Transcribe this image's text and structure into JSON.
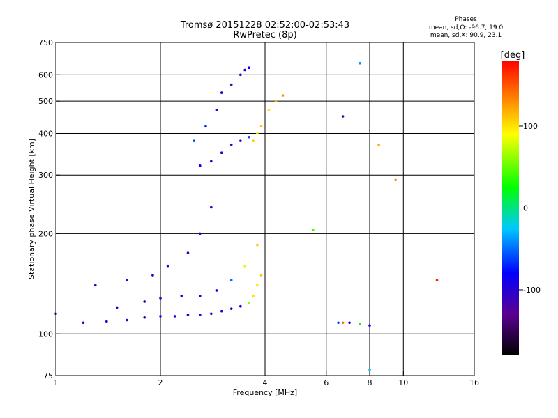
{
  "chart_data": {
    "type": "scatter",
    "title": "Tromsø 20151228 02:52:00-02:53:43",
    "subtitle": "RwPretec (8p)",
    "xlabel": "Frequency [MHz]",
    "ylabel": "Stationary phase Virtual Height [km]",
    "x_scale": "log",
    "y_scale": "log",
    "xlim": [
      1,
      16
    ],
    "ylim": [
      75,
      750
    ],
    "x_ticks": [
      1,
      2,
      4,
      6,
      8,
      10,
      16
    ],
    "x_ticklabels": [
      "1",
      "2",
      "4",
      "6",
      "8",
      "10",
      "16"
    ],
    "x_gridlines": [
      2,
      4,
      6,
      8,
      10
    ],
    "y_ticks": [
      75,
      100,
      200,
      300,
      400,
      500,
      600,
      750
    ],
    "y_ticklabels": [
      "75",
      "100",
      "200",
      "300",
      "400",
      "500",
      "600",
      "750"
    ],
    "y_gridlines": [
      100,
      200,
      300,
      400,
      500,
      600
    ],
    "grid": true,
    "colorbar": {
      "label": "[deg]",
      "range": [
        -180,
        180
      ],
      "ticks": [
        -100,
        0,
        100
      ],
      "ticklabels": [
        "-100",
        "0",
        "100"
      ],
      "colormap": [
        "#000000",
        "#5a0090",
        "#0000ff",
        "#00c8ff",
        "#00ff00",
        "#ffff00",
        "#ff0000"
      ]
    },
    "stats": {
      "heading": "Phases",
      "o_mode": "mean, sd,O: -96.7, 19.0",
      "x_mode": "mean, sd,X:  90.9, 23.1"
    },
    "series": [
      {
        "x": [
          1.0,
          1.2,
          1.4,
          1.6,
          1.8,
          2.0,
          2.2,
          2.4,
          2.6,
          2.8,
          3.0,
          3.2,
          3.4,
          3.6,
          3.7,
          3.8,
          3.9
        ],
        "y": [
          115,
          108,
          109,
          110,
          112,
          113,
          113,
          114,
          114,
          115,
          117,
          119,
          121,
          124,
          130,
          140,
          150
        ],
        "phase": [
          -100,
          -100,
          -100,
          -100,
          -100,
          -100,
          -100,
          -100,
          -100,
          -100,
          -110,
          -100,
          -90,
          60,
          100,
          100,
          110
        ]
      },
      {
        "x": [
          1.5,
          1.8,
          2.0,
          2.3,
          2.6,
          2.9,
          3.2,
          3.5,
          3.8
        ],
        "y": [
          120,
          125,
          128,
          130,
          130,
          135,
          145,
          160,
          185
        ],
        "phase": [
          -100,
          -100,
          -110,
          -100,
          -90,
          -80,
          -50,
          80,
          110
        ]
      },
      {
        "x": [
          1.3,
          1.6,
          1.9,
          2.1,
          2.4,
          2.6,
          2.8
        ],
        "y": [
          140,
          145,
          150,
          160,
          175,
          200,
          240
        ],
        "phase": [
          -100,
          -100,
          -100,
          -110,
          -100,
          -100,
          -90
        ]
      },
      {
        "x": [
          2.6,
          2.8,
          3.0,
          3.2,
          3.4,
          3.6,
          3.8
        ],
        "y": [
          320,
          330,
          350,
          370,
          380,
          390,
          400
        ],
        "phase": [
          -80,
          -90,
          -100,
          -110,
          -100,
          -60,
          100
        ]
      },
      {
        "x": [
          2.5,
          2.7,
          2.9,
          3.0,
          3.2,
          3.4,
          3.5,
          3.6
        ],
        "y": [
          380,
          420,
          470,
          530,
          560,
          600,
          620,
          630
        ],
        "phase": [
          -60,
          -70,
          -90,
          -100,
          -110,
          -110,
          -100,
          -80
        ]
      },
      {
        "x": [
          3.7,
          3.9,
          4.1,
          4.3,
          4.5
        ],
        "y": [
          380,
          420,
          470,
          500,
          520
        ],
        "phase": [
          110,
          110,
          100,
          120,
          130
        ]
      },
      {
        "x": [
          5.5,
          6.5,
          6.7,
          7.0,
          7.5,
          8.0
        ],
        "y": [
          205,
          108,
          108,
          108,
          107,
          106
        ],
        "phase": [
          40,
          -60,
          140,
          -100,
          20,
          -80
        ]
      },
      {
        "x": [
          6.7,
          7.5,
          8.0,
          8.5,
          9.5,
          12.5
        ],
        "y": [
          450,
          650,
          78,
          370,
          290,
          145
        ],
        "phase": [
          -120,
          -40,
          -20,
          120,
          130,
          170
        ]
      }
    ]
  }
}
